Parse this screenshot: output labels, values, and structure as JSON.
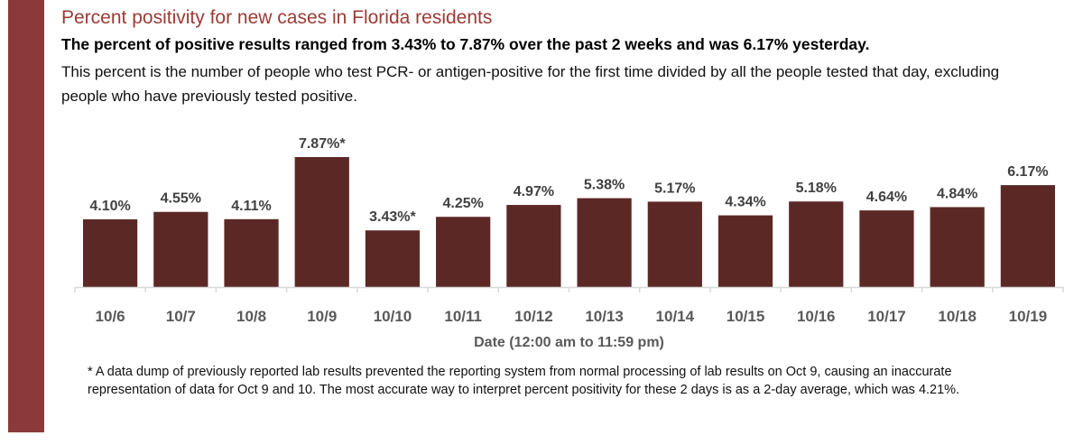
{
  "header": {
    "title": "Percent positivity for new cases in Florida residents",
    "subtitle": "The percent of positive results ranged from 3.43% to 7.87% over the past 2 weeks and was 6.17% yesterday.",
    "description": "This percent is the number of people who test PCR- or antigen-positive for the first time divided by all the people tested that day, excluding people who have previously tested positive."
  },
  "colors": {
    "accent_band": "#8B3A3A",
    "title": "#9B3B35",
    "bar": "#5C2825"
  },
  "chart_data": {
    "type": "bar",
    "title": "Percent positivity for new cases in Florida residents",
    "xlabel": "Date (12:00 am to 11:59 pm)",
    "ylabel": "",
    "ylim": [
      0,
      8.5
    ],
    "grid": false,
    "legend": "none",
    "categories": [
      "10/6",
      "10/7",
      "10/8",
      "10/9",
      "10/10",
      "10/11",
      "10/12",
      "10/13",
      "10/14",
      "10/15",
      "10/16",
      "10/17",
      "10/18",
      "10/19"
    ],
    "values": [
      4.1,
      4.55,
      4.11,
      7.87,
      3.43,
      4.25,
      4.97,
      5.38,
      5.17,
      4.34,
      5.18,
      4.64,
      4.84,
      6.17
    ],
    "data_labels": [
      "4.10%",
      "4.55%",
      "4.11%",
      "7.87%*",
      "3.43%*",
      "4.25%",
      "4.97%",
      "5.38%",
      "5.17%",
      "4.34%",
      "5.18%",
      "4.64%",
      "4.84%",
      "6.17%"
    ]
  },
  "footnote": "* A data dump of previously reported lab results prevented the reporting system from normal processing of lab results on Oct 9, causing an inaccurate representation of data for Oct 9 and 10. The most accurate way to interpret percent positivity for these 2 days is as a 2-day average, which was 4.21%."
}
